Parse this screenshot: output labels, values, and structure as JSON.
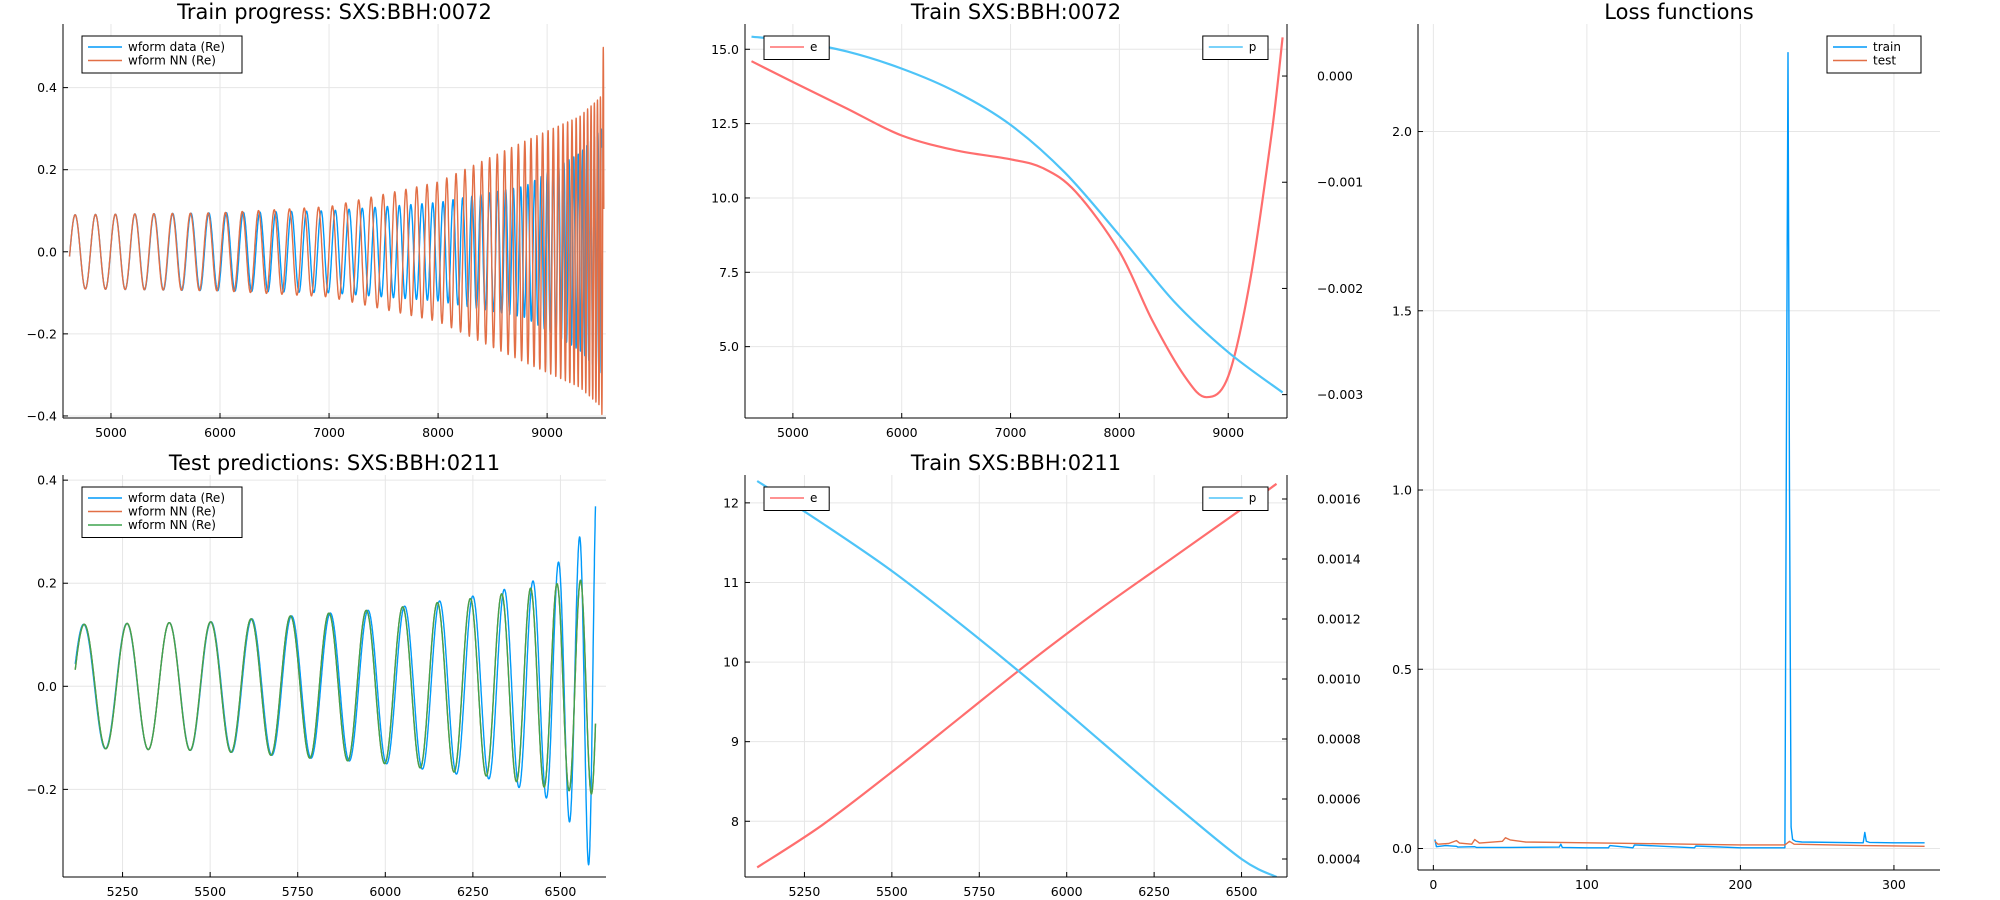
{
  "chart_data": [
    {
      "id": "train-progress",
      "type": "line",
      "title": "Train progress: SXS:BBH:0072",
      "xlim": [
        4560,
        9540
      ],
      "ylim": [
        -0.405,
        0.555
      ],
      "xticks": [
        5000,
        6000,
        7000,
        8000,
        9000
      ],
      "xtick_labels": [
        "5000",
        "6000",
        "7000",
        "8000",
        "9000"
      ],
      "yticks": [
        -0.4,
        -0.2,
        0.0,
        0.2,
        0.4
      ],
      "ytick_labels": [
        "−0.4",
        "−0.2",
        "0.0",
        "0.2",
        "0.4"
      ],
      "grid": true,
      "legend_position": "top-left",
      "series": [
        {
          "name": "wform data (Re)",
          "color": "#009AFA",
          "kind": "chirp",
          "x_range": [
            4620,
            9500
          ],
          "anchors_x": [
            4620,
            6000,
            7000,
            8000,
            8800,
            9300,
            9500
          ],
          "amp": [
            0.09,
            0.095,
            0.1,
            0.12,
            0.16,
            0.24,
            0.3
          ],
          "period": [
            190,
            160,
            130,
            95,
            65,
            40,
            30
          ],
          "phase0": -1.7
        },
        {
          "name": "wform NN (Re)",
          "color": "#E26F46",
          "kind": "chirp",
          "x_range": [
            4620,
            9520
          ],
          "anchors_x": [
            4620,
            6000,
            7000,
            8000,
            8800,
            9300,
            9500,
            9520
          ],
          "amp": [
            0.09,
            0.095,
            0.11,
            0.17,
            0.27,
            0.33,
            0.38,
            0.54
          ],
          "period": [
            190,
            158,
            126,
            90,
            58,
            36,
            26,
            24
          ],
          "phase0": -1.7
        }
      ]
    },
    {
      "id": "train-0072",
      "type": "line",
      "title": "Train SXS:BBH:0072",
      "xlim": [
        4560,
        9540
      ],
      "ylim": [
        2.6,
        15.85
      ],
      "y2lim": [
        -0.00322,
        0.00049
      ],
      "xticks": [
        5000,
        6000,
        7000,
        8000,
        9000
      ],
      "xtick_labels": [
        "5000",
        "6000",
        "7000",
        "8000",
        "9000"
      ],
      "yticks": [
        5.0,
        7.5,
        10.0,
        12.5,
        15.0
      ],
      "ytick_labels": [
        "5.0",
        "7.5",
        "10.0",
        "12.5",
        "15.0"
      ],
      "y2ticks": [
        0.0,
        -0.001,
        -0.002,
        -0.003
      ],
      "y2tick_labels": [
        "0.000",
        "−0.001",
        "−0.002",
        "−0.003"
      ],
      "grid": true,
      "legend_position": "top-left / top-right",
      "series": [
        {
          "name": "e",
          "color": "#FF6E6E",
          "axis": "left",
          "x": [
            4620,
            5000,
            5500,
            6000,
            6500,
            7000,
            7300,
            7600,
            8000,
            8300,
            8600,
            8800,
            9000,
            9200,
            9400,
            9500
          ],
          "y": [
            14.6,
            13.9,
            13.0,
            12.1,
            11.6,
            11.3,
            11.0,
            10.2,
            8.2,
            5.9,
            4.0,
            3.3,
            4.0,
            7.2,
            12.2,
            15.4
          ]
        },
        {
          "name": "p",
          "color": "#4EC4F8",
          "axis": "right",
          "x": [
            4620,
            5000,
            5500,
            6000,
            6500,
            7000,
            7500,
            8000,
            8500,
            9000,
            9500
          ],
          "y": [
            0.00037,
            0.00033,
            0.00023,
            7e-05,
            -0.00015,
            -0.00046,
            -0.00091,
            -0.0015,
            -0.00212,
            -0.0026,
            -0.00298
          ]
        }
      ]
    },
    {
      "id": "loss-functions",
      "type": "line",
      "title": "Loss functions",
      "xlim": [
        -10,
        330
      ],
      "ylim": [
        -0.06,
        2.3
      ],
      "xticks": [
        0,
        100,
        200,
        300
      ],
      "xtick_labels": [
        "0",
        "100",
        "200",
        "300"
      ],
      "yticks": [
        0.0,
        0.5,
        1.0,
        1.5,
        2.0
      ],
      "ytick_labels": [
        "0.0",
        "0.5",
        "1.0",
        "1.5",
        "2.0"
      ],
      "grid": true,
      "legend_position": "top-right",
      "series": [
        {
          "name": "train",
          "color": "#009AFA",
          "x": [
            1,
            2,
            8,
            15,
            16,
            27,
            28,
            50,
            82,
            83,
            84,
            100,
            114,
            115,
            130,
            131,
            170,
            171,
            200,
            229,
            230,
            231,
            232,
            233,
            234,
            236,
            240,
            280,
            281,
            282,
            284,
            300,
            320
          ],
          "y": [
            0.025,
            0.005,
            0.008,
            0.006,
            0.004,
            0.005,
            0.003,
            0.003,
            0.004,
            0.012,
            0.003,
            0.002,
            0.002,
            0.008,
            0.002,
            0.01,
            0.002,
            0.007,
            0.002,
            0.002,
            1.2,
            2.22,
            1.0,
            0.06,
            0.025,
            0.02,
            0.018,
            0.016,
            0.045,
            0.02,
            0.017,
            0.016,
            0.016
          ]
        },
        {
          "name": "test",
          "color": "#E26F46",
          "x": [
            1,
            3,
            10,
            15,
            17,
            25,
            27,
            30,
            45,
            47,
            50,
            60,
            100,
            150,
            200,
            229,
            232,
            235,
            280,
            320
          ],
          "y": [
            0.02,
            0.012,
            0.014,
            0.022,
            0.015,
            0.012,
            0.025,
            0.015,
            0.02,
            0.03,
            0.024,
            0.018,
            0.016,
            0.013,
            0.01,
            0.01,
            0.02,
            0.012,
            0.008,
            0.006
          ]
        }
      ]
    },
    {
      "id": "test-predictions",
      "type": "line",
      "title": "Test predictions: SXS:BBH:0211",
      "xlim": [
        5080,
        6630
      ],
      "ylim": [
        -0.37,
        0.41
      ],
      "xticks": [
        5250,
        5500,
        5750,
        6000,
        6250,
        6500
      ],
      "xtick_labels": [
        "5250",
        "5500",
        "5750",
        "6000",
        "6250",
        "6500"
      ],
      "yticks": [
        -0.2,
        0.0,
        0.2,
        0.4
      ],
      "ytick_labels": [
        "−0.2",
        "0.0",
        "0.2",
        "0.4"
      ],
      "grid": true,
      "legend_position": "top-left",
      "series": [
        {
          "name": "wform data (Re)",
          "color": "#009AFA",
          "kind": "chirp",
          "x_range": [
            5115,
            6600
          ],
          "anchors_x": [
            5115,
            5500,
            6000,
            6300,
            6450,
            6550,
            6600
          ],
          "amp": [
            0.12,
            0.125,
            0.15,
            0.18,
            0.21,
            0.28,
            0.39
          ],
          "period": [
            125,
            118,
            105,
            90,
            75,
            55,
            45
          ],
          "phase0": -1.2
        },
        {
          "name": "wform NN (Re)",
          "color": "#E26F46",
          "kind": "chirp",
          "x_range": [
            5115,
            6600
          ],
          "anchors_x": [
            5115,
            5500,
            6000,
            6300,
            6450,
            6550,
            6600
          ],
          "amp": [
            0.12,
            0.125,
            0.15,
            0.175,
            0.195,
            0.205,
            0.21
          ],
          "period": [
            124,
            117,
            104,
            89,
            76,
            64,
            60
          ],
          "phase0": -1.3
        },
        {
          "name": "wform NN (Re)",
          "color": "#3EA44E",
          "kind": "chirp",
          "x_range": [
            5115,
            6600
          ],
          "anchors_x": [
            5115,
            5500,
            6000,
            6300,
            6450,
            6550,
            6600
          ],
          "amp": [
            0.12,
            0.125,
            0.15,
            0.175,
            0.195,
            0.205,
            0.21
          ],
          "period": [
            124,
            117,
            104,
            89,
            76,
            64,
            60
          ],
          "phase0": -1.3
        }
      ]
    },
    {
      "id": "train-0211",
      "type": "line",
      "title": "Train SXS:BBH:0211",
      "xlim": [
        5080,
        6630
      ],
      "ylim": [
        7.3,
        12.35
      ],
      "y2lim": [
        0.00034,
        0.00168
      ],
      "xticks": [
        5250,
        5500,
        5750,
        6000,
        6250,
        6500
      ],
      "xtick_labels": [
        "5250",
        "5500",
        "5750",
        "6000",
        "6250",
        "6500"
      ],
      "yticks": [
        8,
        9,
        10,
        11,
        12
      ],
      "ytick_labels": [
        "8",
        "9",
        "10",
        "11",
        "12"
      ],
      "y2ticks": [
        0.0004,
        0.0006,
        0.0008,
        0.001,
        0.0012,
        0.0014,
        0.0016
      ],
      "y2tick_labels": [
        "0.0004",
        "0.0006",
        "0.0008",
        "0.0010",
        "0.0012",
        "0.0014",
        "0.0016"
      ],
      "grid": true,
      "legend_position": "top-left / top-right",
      "series": [
        {
          "name": "e",
          "color": "#FF6E6E",
          "axis": "left",
          "x": [
            5115,
            5300,
            5500,
            5700,
            5900,
            6100,
            6300,
            6500,
            6600
          ],
          "y": [
            7.42,
            7.95,
            8.62,
            9.32,
            10.02,
            10.68,
            11.3,
            11.92,
            12.24
          ]
        },
        {
          "name": "p",
          "color": "#4EC4F8",
          "axis": "right",
          "x": [
            5115,
            5300,
            5500,
            5700,
            5900,
            6100,
            6300,
            6500,
            6600
          ],
          "y": [
            0.00166,
            0.00152,
            0.00136,
            0.00118,
            0.00099,
            0.00079,
            0.00059,
            0.0004,
            0.00034
          ]
        }
      ]
    }
  ]
}
